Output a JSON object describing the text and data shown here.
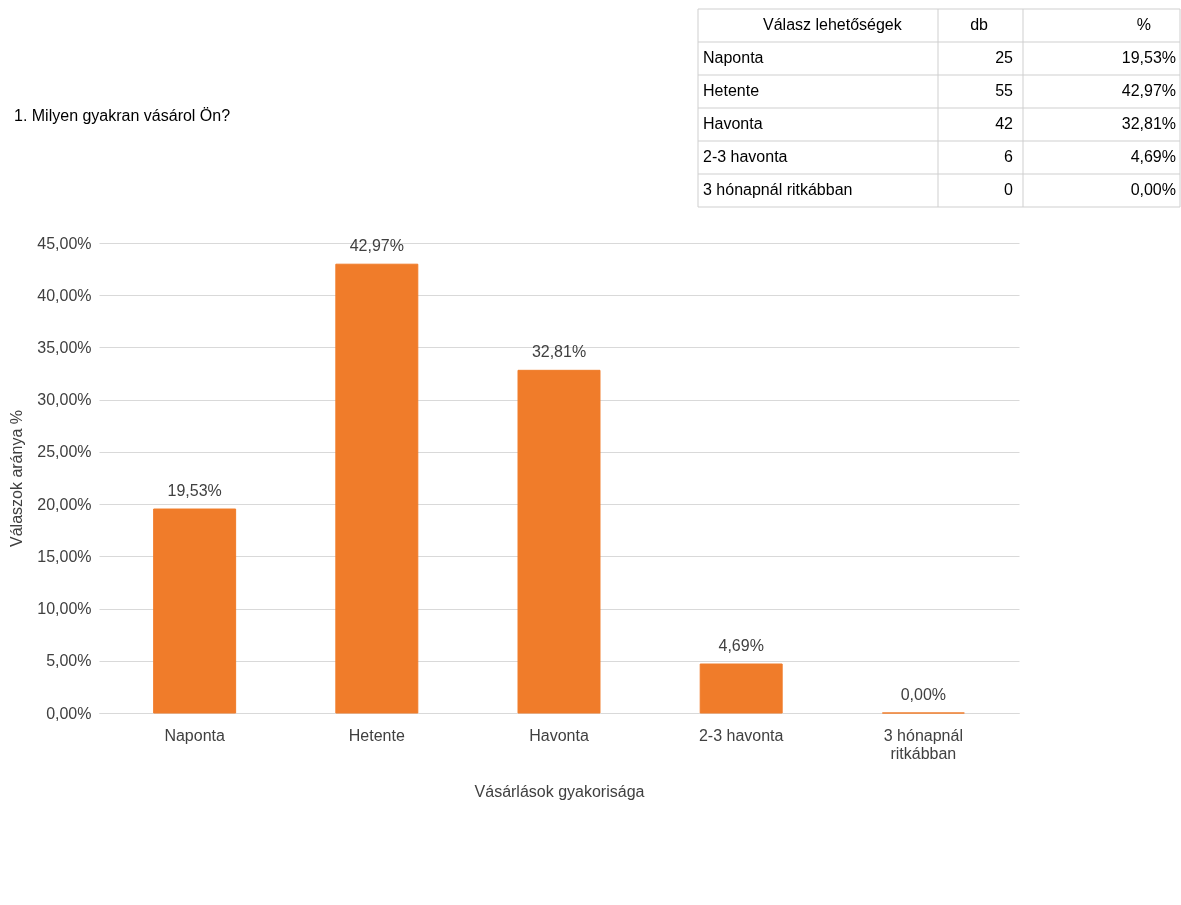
{
  "chart_data": [
    {
      "type": "other",
      "title": "1. Milyen gyakran vásárol Ön?",
      "annotations": [
        "Válasz lehetőségek",
        "db",
        "%",
        "Naponta",
        "25",
        "19,53%",
        "Hetente",
        "55",
        "42,97%",
        "Havonta",
        "42",
        "32,81%",
        "2-3 havonta",
        "6",
        "4,69%",
        "3 hónapnál ritkábban",
        "0",
        "0,00%"
      ]
    },
    {
      "type": "bar",
      "xlabel": "Vásárlások gyakorisága",
      "ylabel": "Válaszok aránya %",
      "categories": [
        "Naponta",
        "Hetente",
        "Havonta",
        "2-3 havonta",
        "3 hónapnál ritkábban"
      ],
      "values": [
        19.53,
        42.97,
        32.81,
        4.69,
        0
      ],
      "value_labels": [
        "19,53%",
        "42,97%",
        "32,81%",
        "4,69%",
        "0,00%"
      ],
      "color": "#f07c2a",
      "ylim": [
        0,
        45
      ],
      "yticks": [
        {
          "value": 0,
          "label": "0,00%"
        },
        {
          "value": 5,
          "label": "5,00%"
        },
        {
          "value": 10,
          "label": "10,00%"
        },
        {
          "value": 15,
          "label": "15,00%"
        },
        {
          "value": 20,
          "label": "20,00%"
        },
        {
          "value": 25,
          "label": "25,00%"
        },
        {
          "value": 30,
          "label": "30,00%"
        },
        {
          "value": 35,
          "label": "35,00%"
        },
        {
          "value": 40,
          "label": "40,00%"
        },
        {
          "value": 45,
          "label": "45,00%"
        }
      ],
      "grid": "y"
    }
  ]
}
